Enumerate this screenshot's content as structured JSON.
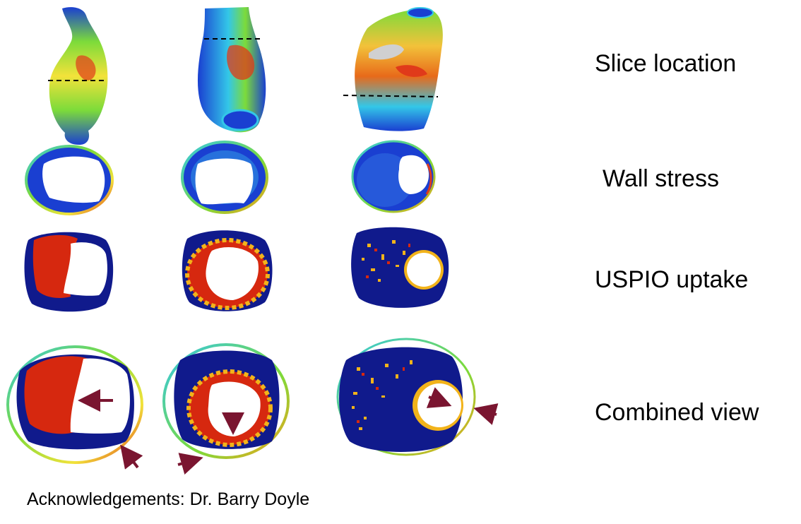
{
  "row_labels": {
    "slice_location": "Slice location",
    "wall_stress": "Wall stress",
    "uspio_uptake": "USPIO uptake",
    "combined_view": "Combined view"
  },
  "acknowledgement": "Acknowledgements: Dr. Barry Doyle",
  "columns": 3,
  "colors": {
    "stress_low": "#1a3fd1",
    "stress_mid": "#33c7e8",
    "stress_green": "#7cdb3a",
    "stress_yellow": "#f2e23a",
    "stress_high": "#e03a1a",
    "uspio_background": "#101a8c",
    "uspio_high": "#d6280f",
    "uspio_mid": "#f2b31a",
    "arrow": "#7a1530",
    "slice_line": "#000000"
  }
}
